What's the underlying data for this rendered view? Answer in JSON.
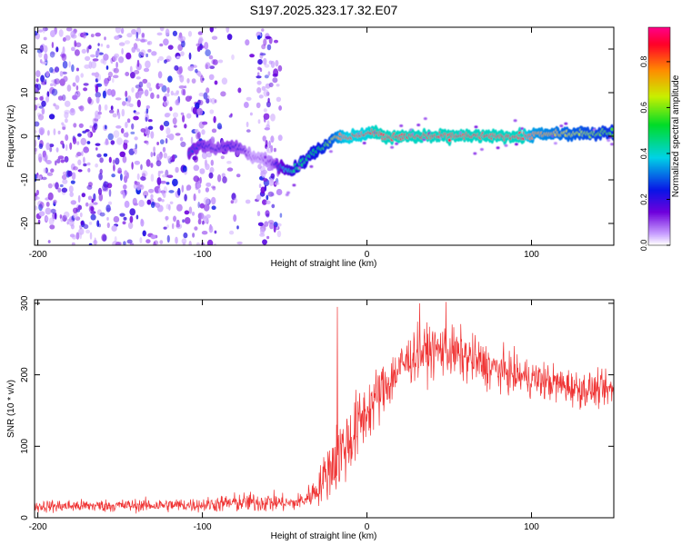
{
  "title": "S197.2025.323.17.32.E07",
  "chart_data": [
    {
      "type": "heatmap",
      "title": "S197.2025.323.17.32.E07",
      "xlabel": "Height of straight line (km)",
      "ylabel": "Frequency (Hz)",
      "xlim": [
        -202,
        150
      ],
      "ylim": [
        -25,
        25
      ],
      "xticks": [
        -200,
        -100,
        0,
        100
      ],
      "yticks": [
        -20,
        -10,
        0,
        10,
        20
      ],
      "colorbar": {
        "label": "Normalized spectral amplitude",
        "range": [
          0,
          0.95
        ],
        "ticks": [
          0.0,
          0.2,
          0.4,
          0.6,
          0.8
        ]
      },
      "ridge": {
        "x": [
          -108,
          -100,
          -92,
          -84,
          -76,
          -70,
          -64,
          -58,
          -52,
          -46,
          -42,
          -36,
          -30,
          -25,
          -20,
          -15,
          -10,
          -5,
          0,
          5,
          10,
          30,
          60,
          95,
          100,
          120,
          150
        ],
        "freq": [
          -4,
          -2,
          -3,
          -2,
          -3,
          -5,
          -5,
          -6,
          -7,
          -8,
          -7,
          -5,
          -3,
          -2,
          0,
          0,
          0,
          0,
          1,
          1,
          0,
          0,
          0,
          0,
          0.3,
          0.6,
          0.9
        ],
        "amplitude": [
          0.3,
          0.25,
          0.2,
          0.25,
          0.2,
          0.1,
          0.1,
          0.15,
          0.35,
          0.45,
          0.5,
          0.5,
          0.55,
          0.6,
          0.7,
          0.85,
          0.9,
          0.9,
          0.9,
          0.95,
          0.95,
          0.95,
          0.95,
          0.95,
          0.8,
          0.7,
          0.6
        ]
      }
    },
    {
      "type": "line",
      "xlabel": "Height of straight line (km)",
      "ylabel": "SNR (10 * v/v)",
      "xlim": [
        -202,
        150
      ],
      "ylim": [
        0,
        305
      ],
      "xticks": [
        -200,
        -100,
        0,
        100
      ],
      "yticks": [
        0,
        100,
        200,
        300
      ],
      "series": [
        {
          "name": "SNR",
          "color": "#ef3333",
          "x": [
            -202,
            -150,
            -100,
            -80,
            -60,
            -45,
            -38,
            -30,
            -25,
            -20,
            -15,
            -10,
            -5,
            0,
            10,
            20,
            30,
            45,
            60,
            75,
            90,
            110,
            130,
            150
          ],
          "mean": [
            16,
            17,
            18,
            21,
            22,
            20,
            25,
            40,
            60,
            80,
            95,
            110,
            130,
            150,
            180,
            210,
            230,
            235,
            225,
            210,
            200,
            190,
            180,
            178
          ],
          "spread": [
            10,
            10,
            11,
            15,
            16,
            12,
            15,
            25,
            40,
            55,
            60,
            60,
            55,
            50,
            45,
            40,
            40,
            40,
            40,
            35,
            30,
            30,
            28,
            25
          ],
          "spikes": [
            {
              "x": -18,
              "y": 295
            },
            {
              "x": 32,
              "y": 300
            },
            {
              "x": 48,
              "y": 302
            }
          ]
        }
      ]
    }
  ]
}
